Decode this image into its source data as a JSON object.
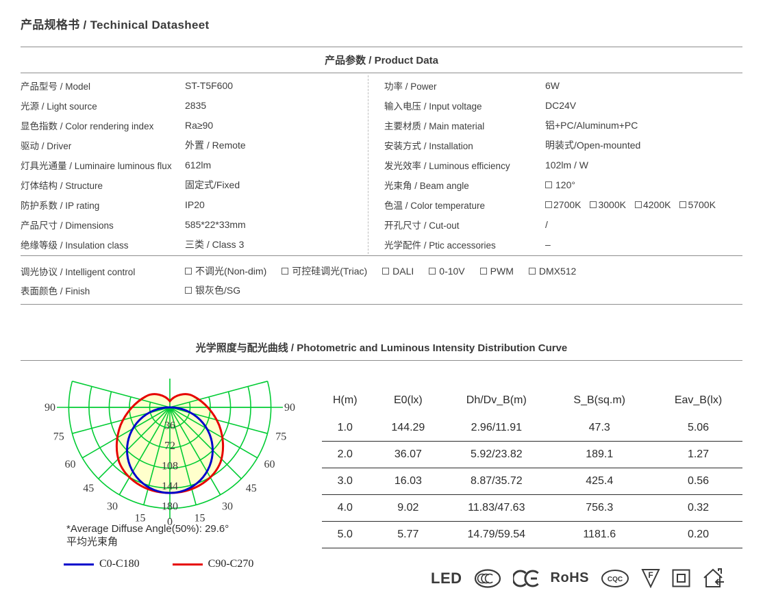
{
  "page": {
    "title": "产品规格书 / Techinical Datasheet"
  },
  "product": {
    "section_title": "产品参数 / Product Data",
    "left_rows": [
      {
        "label": "产品型号 / Model",
        "value": "ST-T5F600"
      },
      {
        "label": "光源 / Light source",
        "value": "2835"
      },
      {
        "label": "显色指数 / Color rendering index",
        "value": "Ra≥90"
      },
      {
        "label": "驱动 / Driver",
        "value": "外置 / Remote"
      },
      {
        "label": "灯具光通量 / Luminaire luminous flux",
        "value": "612lm"
      },
      {
        "label": "灯体结构 / Structure",
        "value": "固定式/Fixed"
      },
      {
        "label": "防护系数  / IP  rating",
        "value": "IP20"
      },
      {
        "label": "产品尺寸  / Dimensions",
        "value": "585*22*33mm"
      },
      {
        "label": "绝缘等级  / Insulation class",
        "value": "三类 / Class 3"
      }
    ],
    "right_rows": [
      {
        "label": "功率 / Power",
        "value": "6W"
      },
      {
        "label": "输入电压 / Input voltage",
        "value": "DC24V"
      },
      {
        "label": "主要材质 / Main material",
        "value": "铝+PC/Aluminum+PC"
      },
      {
        "label": "安装方式 / Installation",
        "value": "明装式/Open-mounted"
      },
      {
        "label": "发光效率 / Luminous efficiency",
        "value": "102lm / W"
      },
      {
        "label": "光束角 / Beam angle",
        "options": [
          "120°"
        ]
      },
      {
        "label": "色温 / Color temperature",
        "options": [
          "2700K",
          "3000K",
          "4200K",
          "5700K"
        ],
        "tight": true
      },
      {
        "label": "开孔尺寸 / Cut-out",
        "value": "/"
      },
      {
        "label": "光学配件 / Ptic accessories",
        "value": "–"
      }
    ],
    "control_rows": [
      {
        "label": "调光协议  / Intelligent control",
        "options": [
          "不调光(Non-dim)",
          "可控硅调光(Triac)",
          "DALI",
          "0-10V",
          "PWM",
          "DMX512"
        ]
      },
      {
        "label": "表面颜色  / Finish",
        "options": [
          "银灰色/SG"
        ]
      }
    ]
  },
  "photometric": {
    "section_title": "光学照度与配光曲线 / Photometric and Luminous Intensity Distribution Curve",
    "chart": {
      "type": "polar-luminous-intensity",
      "radius_ticks": [
        36,
        72,
        108,
        144,
        180
      ],
      "angle_ticks": [
        90,
        75,
        60,
        45,
        30,
        15,
        0
      ],
      "series": [
        {
          "name": "C0-C180",
          "color": "#0000cc"
        },
        {
          "name": "C90-C270",
          "color": "#e60000"
        }
      ],
      "grid_color": "#00cc33",
      "fill_color": "#ffffcc",
      "footnote1": "*Average Diffuse Angle(50%): 29.6°",
      "footnote2": "平均光束角"
    },
    "table": {
      "headers": [
        "H(m)",
        "E0(lx)",
        "Dh/Dv_B(m)",
        "S_B(sq.m)",
        "Eav_B(lx)"
      ],
      "rows": [
        [
          "1.0",
          "144.29",
          "2.96/11.91",
          "47.3",
          "5.06"
        ],
        [
          "2.0",
          "36.07",
          "5.92/23.82",
          "189.1",
          "1.27"
        ],
        [
          "3.0",
          "16.03",
          "8.87/35.72",
          "425.4",
          "0.56"
        ],
        [
          "4.0",
          "9.02",
          "11.83/47.63",
          "756.3",
          "0.32"
        ],
        [
          "5.0",
          "5.77",
          "14.79/59.54",
          "1181.6",
          "0.20"
        ]
      ]
    }
  },
  "certifications": {
    "led": "LED",
    "ccc": "CCC",
    "ce": "CE",
    "rohs": "RoHS",
    "cqc": "CQC",
    "f": "F"
  }
}
